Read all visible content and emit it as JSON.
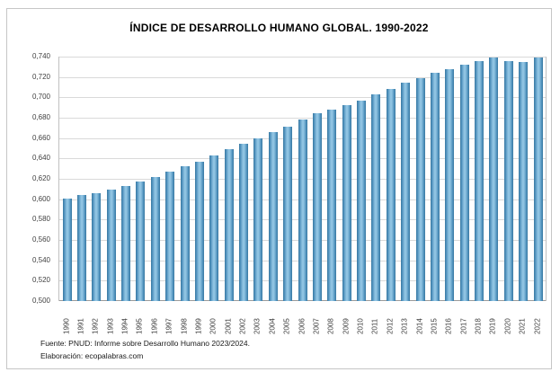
{
  "window": {
    "background": "#ffffff",
    "border_color": "#c6c6c6"
  },
  "chart": {
    "title": "ÍNDICE DE DESARROLLO HUMANO GLOBAL. 1990-2022",
    "source": {
      "line1": "Fuente: PNUD: Informe sobre Desarrollo Humano 2023/2024.",
      "line2": "Elaboración: ecopalabras.com"
    }
  },
  "chart_data": {
    "type": "bar",
    "title": "ÍNDICE DE DESARROLLO HUMANO GLOBAL. 1990-2022",
    "categories": [
      "1990",
      "1991",
      "1992",
      "1993",
      "1994",
      "1995",
      "1996",
      "1997",
      "1998",
      "1999",
      "2000",
      "2001",
      "2002",
      "2003",
      "2004",
      "2005",
      "2006",
      "2007",
      "2008",
      "2009",
      "2010",
      "2011",
      "2012",
      "2013",
      "2014",
      "2015",
      "2016",
      "2017",
      "2018",
      "2019",
      "2020",
      "2021",
      "2022"
    ],
    "values": [
      0.601,
      0.604,
      0.606,
      0.609,
      0.613,
      0.617,
      0.622,
      0.627,
      0.632,
      0.637,
      0.643,
      0.649,
      0.654,
      0.66,
      0.666,
      0.671,
      0.678,
      0.684,
      0.688,
      0.692,
      0.697,
      0.703,
      0.708,
      0.714,
      0.719,
      0.724,
      0.728,
      0.732,
      0.736,
      0.739,
      0.736,
      0.735,
      0.739
    ],
    "xlabel": "",
    "ylabel": "",
    "ylim": [
      0.5,
      0.74
    ],
    "ytick_step": 0.02,
    "ytick_labels": [
      "0,740",
      "0,720",
      "0,700",
      "0,680",
      "0,660",
      "0,640",
      "0,620",
      "0,600",
      "0,580",
      "0,560",
      "0,540",
      "0,520",
      "0,500"
    ],
    "decimal_separator": ",",
    "grid": true,
    "legend": "none",
    "bar_color_edge": "#39789f",
    "bar_color_mid": "#8fc3e2",
    "gridline_color": "#d9d9d9",
    "axis_line_color": "#9b9b9b",
    "axis_text_color": "#404040"
  }
}
